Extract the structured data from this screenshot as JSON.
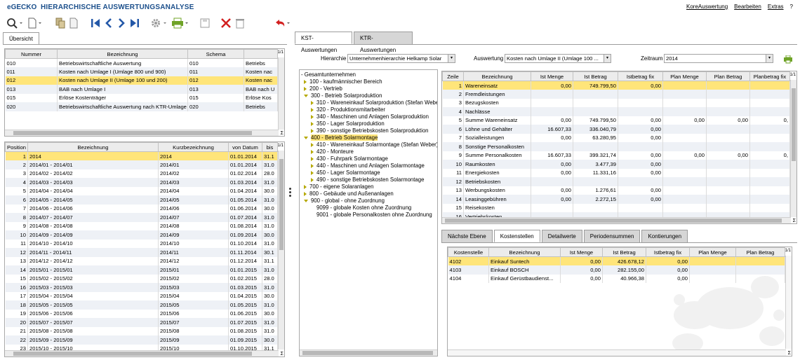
{
  "app": {
    "logo_e": "e",
    "logo_rest": "GECKO",
    "title": "HIERARCHISCHE AUSWERTUNGSANALYSE",
    "menu": [
      "KoreAuswertung",
      "Bearbeiten",
      "Extras",
      "?"
    ]
  },
  "toolbar": {
    "icons": [
      "search-icon",
      "document-icon",
      "copy-icon",
      "first-icon",
      "prev-icon",
      "next-icon",
      "last-icon",
      "settings-icon",
      "print-icon",
      "save-icon",
      "delete-icon",
      "trash-icon",
      "undo-icon"
    ]
  },
  "left_tab": "Übersicht",
  "schema_table": {
    "page_indicator": "1/1",
    "columns": [
      "Nummer",
      "Bezeichnung",
      "Schema",
      ""
    ],
    "rows": [
      {
        "nr": "010",
        "bez": "Betriebswirtschaftliche Auswertung",
        "schema": "010",
        "extra": "Betriebs"
      },
      {
        "nr": "011",
        "bez": "Kosten nach Umlage I (Umlage 800 und 900)",
        "schema": "011",
        "extra": "Kosten nac"
      },
      {
        "nr": "012",
        "bez": "Kosten nach Umlage II (Umlage 100 und 200)",
        "schema": "012",
        "extra": "Kosten nac"
      },
      {
        "nr": "013",
        "bez": "BAB nach Umlage I",
        "schema": "013",
        "extra": "BAB nach U"
      },
      {
        "nr": "015",
        "bez": "Erlöse Kostenträger",
        "schema": "015",
        "extra": "Erlöse Kos"
      },
      {
        "nr": "020",
        "bez": "Betriebswirtschaftliche Auswertung nach KTR-Umlage",
        "schema": "020",
        "extra": "Betriebs"
      }
    ],
    "selected_index": 2,
    "sigma": "Σ"
  },
  "period_table": {
    "page_indicator": "1/1",
    "columns": [
      "Position",
      "Bezeichnung",
      "Kurzbezeichnung",
      "von Datum",
      "bis"
    ],
    "rows": [
      {
        "pos": "1",
        "bez": "2014",
        "kurz": "2014",
        "von": "01.01.2014",
        "bis": "31.1"
      },
      {
        "pos": "2",
        "bez": "2014/01 - 2014/01",
        "kurz": "2014/01",
        "von": "01.01.2014",
        "bis": "31.0"
      },
      {
        "pos": "3",
        "bez": "2014/02 - 2014/02",
        "kurz": "2014/02",
        "von": "01.02.2014",
        "bis": "28.0"
      },
      {
        "pos": "4",
        "bez": "2014/03 - 2014/03",
        "kurz": "2014/03",
        "von": "01.03.2014",
        "bis": "31.0"
      },
      {
        "pos": "5",
        "bez": "2014/04 - 2014/04",
        "kurz": "2014/04",
        "von": "01.04.2014",
        "bis": "30.0"
      },
      {
        "pos": "6",
        "bez": "2014/05 - 2014/05",
        "kurz": "2014/05",
        "von": "01.05.2014",
        "bis": "31.0"
      },
      {
        "pos": "7",
        "bez": "2014/06 - 2014/06",
        "kurz": "2014/06",
        "von": "01.06.2014",
        "bis": "30.0"
      },
      {
        "pos": "8",
        "bez": "2014/07 - 2014/07",
        "kurz": "2014/07",
        "von": "01.07.2014",
        "bis": "31.0"
      },
      {
        "pos": "9",
        "bez": "2014/08 - 2014/08",
        "kurz": "2014/08",
        "von": "01.08.2014",
        "bis": "31.0"
      },
      {
        "pos": "10",
        "bez": "2014/09 - 2014/09",
        "kurz": "2014/09",
        "von": "01.09.2014",
        "bis": "30.0"
      },
      {
        "pos": "11",
        "bez": "2014/10 - 2014/10",
        "kurz": "2014/10",
        "von": "01.10.2014",
        "bis": "31.0"
      },
      {
        "pos": "12",
        "bez": "2014/11 - 2014/11",
        "kurz": "2014/11",
        "von": "01.11.2014",
        "bis": "30.1"
      },
      {
        "pos": "13",
        "bez": "2014/12 - 2014/12",
        "kurz": "2014/12",
        "von": "01.12.2014",
        "bis": "31.1"
      },
      {
        "pos": "14",
        "bez": "2015/01 - 2015/01",
        "kurz": "2015/01",
        "von": "01.01.2015",
        "bis": "31.0"
      },
      {
        "pos": "15",
        "bez": "2015/02 - 2015/02",
        "kurz": "2015/02",
        "von": "01.02.2015",
        "bis": "28.0"
      },
      {
        "pos": "16",
        "bez": "2015/03 - 2015/03",
        "kurz": "2015/03",
        "von": "01.03.2015",
        "bis": "31.0"
      },
      {
        "pos": "17",
        "bez": "2015/04 - 2015/04",
        "kurz": "2015/04",
        "von": "01.04.2015",
        "bis": "30.0"
      },
      {
        "pos": "18",
        "bez": "2015/05 - 2015/05",
        "kurz": "2015/05",
        "von": "01.05.2015",
        "bis": "31.0"
      },
      {
        "pos": "19",
        "bez": "2015/06 - 2015/06",
        "kurz": "2015/06",
        "von": "01.06.2015",
        "bis": "30.0"
      },
      {
        "pos": "20",
        "bez": "2015/07 - 2015/07",
        "kurz": "2015/07",
        "von": "01.07.2015",
        "bis": "31.0"
      },
      {
        "pos": "21",
        "bez": "2015/08 - 2015/08",
        "kurz": "2015/08",
        "von": "01.08.2015",
        "bis": "31.0"
      },
      {
        "pos": "22",
        "bez": "2015/09 - 2015/09",
        "kurz": "2015/09",
        "von": "01.09.2015",
        "bis": "30.0"
      },
      {
        "pos": "23",
        "bez": "2015/10 - 2015/10",
        "kurz": "2015/10",
        "von": "01.10.2015",
        "bis": "31.1"
      }
    ],
    "selected_index": 0,
    "sigma": "Σ"
  },
  "right_tabs": [
    "KST-Auswertungen",
    "KTR-Auswertungen"
  ],
  "filters": {
    "hierarchie_label": "Hierarchie",
    "hierarchie_value": "Unternehmenhierarchie Helkamp Solar",
    "auswertung_label": "Auswertung",
    "auswertung_value": "Kosten nach Umlage II (Umlage 100 ...",
    "zeitraum_label": "Zeitraum",
    "zeitraum_value": "2014",
    "dropdown_glyph": "▾"
  },
  "tree": [
    {
      "label": "- Gesamtunternehmen",
      "level": 0,
      "icon": "none"
    },
    {
      "label": "100 - kaufmännischer Bereich",
      "level": 1,
      "icon": "closed"
    },
    {
      "label": "200 - Vertrieb",
      "level": 1,
      "icon": "closed"
    },
    {
      "label": "300 - Betrieb Solarproduktion",
      "level": 1,
      "icon": "open"
    },
    {
      "label": "310 - Wareneinkauf Solarproduktion (Stefan Weber)",
      "level": 2,
      "icon": "closed"
    },
    {
      "label": "320 - Produktionsmitarbeiter",
      "level": 2,
      "icon": "closed"
    },
    {
      "label": "340 - Maschinen und Anlagen Solarproduktion",
      "level": 2,
      "icon": "closed"
    },
    {
      "label": "350 - Lager Solarproduktion",
      "level": 2,
      "icon": "closed"
    },
    {
      "label": "390 - sonstige Betriebskosten Solarproduktion",
      "level": 2,
      "icon": "closed"
    },
    {
      "label": "400 - Betrieb Solarmontage",
      "level": 1,
      "icon": "open",
      "selected": true
    },
    {
      "label": "410 - Wareneinkauf Solarmontage (Stefan Weber)",
      "level": 2,
      "icon": "closed"
    },
    {
      "label": "420 - Monteure",
      "level": 2,
      "icon": "closed"
    },
    {
      "label": "430 - Fuhrpark Solarmontage",
      "level": 2,
      "icon": "closed"
    },
    {
      "label": "440 - Maschinen und Anlagen Solarmontage",
      "level": 2,
      "icon": "closed"
    },
    {
      "label": "450 - Lager Solarmontage",
      "level": 2,
      "icon": "closed"
    },
    {
      "label": "490 - sonstige Betriebskosten Solarmontage",
      "level": 2,
      "icon": "closed"
    },
    {
      "label": "700 - eigene Solaranlagen",
      "level": 1,
      "icon": "closed"
    },
    {
      "label": "800 - Gebäude und Außenanlagen",
      "level": 1,
      "icon": "closed"
    },
    {
      "label": "900 - global - ohne Zuordnung",
      "level": 1,
      "icon": "open"
    },
    {
      "label": "9099 - globale Kosten ohne Zuordnung",
      "level": 2,
      "icon": "none"
    },
    {
      "label": "9001 - globale Personalkosten ohne Zuordnung",
      "level": 2,
      "icon": "none"
    }
  ],
  "result_table": {
    "page_indicator": "1/1",
    "columns": [
      "Zeile",
      "Bezeichnung",
      "Ist Menge",
      "Ist Betrag",
      "Istbetrag fix",
      "Plan Menge",
      "Plan Betrag",
      "Planbetrag fix"
    ],
    "rows": [
      {
        "z": "1",
        "bez": "Wareneinsatz",
        "im": "0,00",
        "ib": "749.799,50",
        "if": "0,00",
        "pm": "",
        "pb": "",
        "pf": ""
      },
      {
        "z": "2",
        "bez": "Fremdleistungen",
        "im": "",
        "ib": "",
        "if": "",
        "pm": "",
        "pb": "",
        "pf": ""
      },
      {
        "z": "3",
        "bez": "Bezugskosten",
        "im": "",
        "ib": "",
        "if": "",
        "pm": "",
        "pb": "",
        "pf": ""
      },
      {
        "z": "4",
        "bez": "Nachlässe",
        "im": "",
        "ib": "",
        "if": "",
        "pm": "",
        "pb": "",
        "pf": ""
      },
      {
        "z": "5",
        "bez": "Summe Wareneinsatz",
        "im": "0,00",
        "ib": "749.799,50",
        "if": "0,00",
        "pm": "0,00",
        "pb": "0,00",
        "pf": "0,"
      },
      {
        "z": "6",
        "bez": "Löhne und Gehälter",
        "im": "16.607,33",
        "ib": "336.040,79",
        "if": "0,00",
        "pm": "",
        "pb": "",
        "pf": ""
      },
      {
        "z": "7",
        "bez": "Sozialleistungen",
        "im": "0,00",
        "ib": "63.280,95",
        "if": "0,00",
        "pm": "",
        "pb": "",
        "pf": ""
      },
      {
        "z": "8",
        "bez": "Sonstige Personalkosten",
        "im": "",
        "ib": "",
        "if": "",
        "pm": "",
        "pb": "",
        "pf": ""
      },
      {
        "z": "9",
        "bez": "Summe Personalkosten",
        "im": "16.607,33",
        "ib": "399.321,74",
        "if": "0,00",
        "pm": "0,00",
        "pb": "0,00",
        "pf": "0,"
      },
      {
        "z": "10",
        "bez": "Raumkosten",
        "im": "0,00",
        "ib": "3.477,39",
        "if": "0,00",
        "pm": "",
        "pb": "",
        "pf": ""
      },
      {
        "z": "11",
        "bez": "Energiekosten",
        "im": "0,00",
        "ib": "11.331,16",
        "if": "0,00",
        "pm": "",
        "pb": "",
        "pf": ""
      },
      {
        "z": "12",
        "bez": "Betriebskosten",
        "im": "",
        "ib": "",
        "if": "",
        "pm": "",
        "pb": "",
        "pf": ""
      },
      {
        "z": "13",
        "bez": "Werbungskosten",
        "im": "0,00",
        "ib": "1.276,61",
        "if": "0,00",
        "pm": "",
        "pb": "",
        "pf": ""
      },
      {
        "z": "14",
        "bez": "Leasinggebühren",
        "im": "0,00",
        "ib": "2.272,15",
        "if": "0,00",
        "pm": "",
        "pb": "",
        "pf": ""
      },
      {
        "z": "15",
        "bez": "Reisekosten",
        "im": "",
        "ib": "",
        "if": "",
        "pm": "",
        "pb": "",
        "pf": ""
      },
      {
        "z": "16",
        "bez": "Vertriebskosten",
        "im": "",
        "ib": "",
        "if": "",
        "pm": "",
        "pb": "",
        "pf": ""
      }
    ],
    "selected_index": 0,
    "sigma": "Σ"
  },
  "detail_tabs": [
    "Nächste Ebene",
    "Kostenstellen",
    "Detailwerte",
    "Periodensummen",
    "Kontierungen"
  ],
  "detail_active": 1,
  "detail_table": {
    "page_indicator": "1/1",
    "columns": [
      "Kostenstelle",
      "Bezeichnung",
      "Ist Menge",
      "Ist Betrag",
      "Istbetrag fix",
      "Plan Menge",
      "Plan Betrag"
    ],
    "rows": [
      {
        "ks": "4102",
        "bez": "Einkauf Suntech",
        "im": "0,00",
        "ib": "426.678,12",
        "if": "0,00",
        "pm": "",
        "pb": ""
      },
      {
        "ks": "4103",
        "bez": "Einkauf BOSCH",
        "im": "0,00",
        "ib": "282.155,00",
        "if": "0,00",
        "pm": "",
        "pb": ""
      },
      {
        "ks": "4104",
        "bez": "Einkauf Gerüstbaudienst...",
        "im": "0,00",
        "ib": "40.966,38",
        "if": "0,00",
        "pm": "",
        "pb": ""
      }
    ],
    "selected_index": 0,
    "sigma": "Σ"
  },
  "colors": {
    "brand": "#1b4f8b",
    "selection": "#ffe57a",
    "alt_row": "#eef1f6",
    "tree_arrow": "#b5a800",
    "print_green": "#6fa327",
    "delete_red": "#d22020",
    "nav_blue": "#2458a8"
  }
}
